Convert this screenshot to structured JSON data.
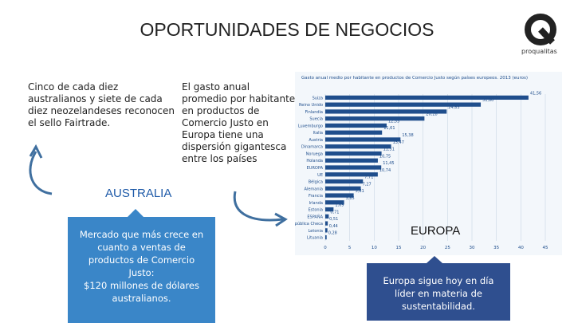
{
  "title": "OPORTUNIDADES DE NEGOCIOS",
  "logo": "proqualitas",
  "left_text": "Cinco de cada diez australianos y siete de cada diez neozelandeses reconocen el sello Fairtrade.",
  "middle_text": "El gasto anual promedio por habitante en productos de Comercio Justo en Europa tiene una dispersión gigantesca entre los países",
  "australia_label": "AUSTRALIA",
  "australia_box": [
    "Mercado que más crece en cuanto a ventas de productos de Comercio Justo:",
    "$120 millones de dólares australianos."
  ],
  "europa_label": "EUROPA",
  "europa_box": "Europa sigue hoy en día líder en materia de sustentabilidad.",
  "chart_data": {
    "type": "bar",
    "orientation": "horizontal",
    "title": "Gasto anual medio por habitante en productos de Comercio Justo según países europeos. 2013 (euros)",
    "categories": [
      "Suiza",
      "Reino Unido",
      "Finlandia",
      "Suecia",
      "Luxemburgo",
      "Italia",
      "Austria",
      "Dinamarca",
      "Noruega",
      "Holanda",
      "EUROPA",
      "UE",
      "Bélgica",
      "Alemania",
      "Francia",
      "Irlanda",
      "Estonia",
      "ESPAÑA",
      "República Checa",
      "Letonia",
      "Lituania"
    ],
    "values": [
      41.56,
      31.8,
      24.83,
      20.28,
      12.55,
      11.61,
      15.38,
      13.47,
      11.51,
      10.75,
      11.45,
      10.74,
      7.71,
      7.27,
      5.81,
      3.85,
      1.69,
      0.71,
      0.51,
      0.44,
      0.28
    ],
    "value_labels": [
      "41,56",
      "31,80",
      "24,83",
      "20,28",
      "12,55",
      "11,61",
      "15,38",
      "13,47",
      "11,51",
      "10,75",
      "11,45",
      "10,74",
      "7,71",
      "7,27",
      "5,81",
      "3,85",
      "1,69",
      "0,71",
      "0,51",
      "0,44",
      "0,28"
    ],
    "color": "#1f4e8c",
    "xlim": [
      0,
      45
    ],
    "xticks": [
      0,
      5,
      10,
      15,
      20,
      25,
      30,
      35,
      40,
      45
    ],
    "grid": true
  }
}
